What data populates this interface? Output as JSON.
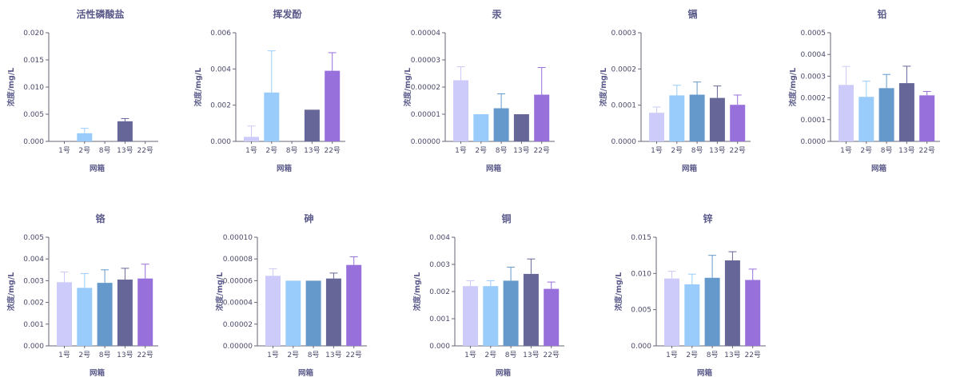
{
  "palette": [
    "#cccbf9",
    "#99ccfb",
    "#6599cb",
    "#666699",
    "#9870dc"
  ],
  "chart_data": [
    {
      "type": "bar",
      "title": "活性磷酸盐",
      "xlabel": "网箱",
      "ylabel": "浓度/mg/L",
      "categories": [
        "1号",
        "2号",
        "8号",
        "13号",
        "22号"
      ],
      "values": [
        0,
        0.0015,
        0,
        0.0037,
        0
      ],
      "errors": [
        0,
        0.0009,
        0,
        0.0005,
        0
      ],
      "ylim": [
        0,
        0.02
      ],
      "yticks": [
        "0.000",
        "0.005",
        "0.010",
        "0.015",
        "0.020"
      ]
    },
    {
      "type": "bar",
      "title": "挥发酚",
      "xlabel": "网箱",
      "ylabel": "浓度/mg/L",
      "categories": [
        "1号",
        "2号",
        "8号",
        "13号",
        "22号"
      ],
      "values": [
        0.00025,
        0.0027,
        0,
        0.00175,
        0.0039
      ],
      "errors": [
        0.0006,
        0.0023,
        0,
        0,
        0.001
      ],
      "ylim": [
        0,
        0.006
      ],
      "yticks": [
        "0.000",
        "0.002",
        "0.004",
        "0.006"
      ]
    },
    {
      "type": "bar",
      "title": "汞",
      "xlabel": "网箱",
      "ylabel": "浓度/mg/L",
      "categories": [
        "1号",
        "2号",
        "8号",
        "13号",
        "22号"
      ],
      "values": [
        2.25e-05,
        1e-05,
        1.22e-05,
        1e-05,
        1.72e-05
      ],
      "errors": [
        5e-06,
        0,
        5.3e-06,
        0,
        1e-05
      ],
      "ylim": [
        0,
        4e-05
      ],
      "yticks": [
        "0.00000",
        "0.00001",
        "0.00002",
        "0.00003",
        "0.00004"
      ]
    },
    {
      "type": "bar",
      "title": "镉",
      "xlabel": "网箱",
      "ylabel": "浓度/mg/L",
      "categories": [
        "1号",
        "2号",
        "8号",
        "13号",
        "22号"
      ],
      "values": [
        7.9e-05,
        0.000127,
        0.000129,
        0.00012,
        0.000101
      ],
      "errors": [
        1.6e-05,
        2.8e-05,
        3.5e-05,
        3.3e-05,
        2.7e-05
      ],
      "ylim": [
        0,
        0.0003
      ],
      "yticks": [
        "0.0000",
        "0.0001",
        "0.0002",
        "0.0003"
      ]
    },
    {
      "type": "bar",
      "title": "铅",
      "xlabel": "网箱",
      "ylabel": "浓度/mg/L",
      "categories": [
        "1号",
        "2号",
        "8号",
        "13号",
        "22号"
      ],
      "values": [
        0.00026,
        0.000205,
        0.000245,
        0.000268,
        0.000212
      ],
      "errors": [
        8.5e-05,
        7.2e-05,
        6.3e-05,
        7.8e-05,
        1.8e-05
      ],
      "ylim": [
        0,
        0.0005
      ],
      "yticks": [
        "0.0000",
        "0.0001",
        "0.0002",
        "0.0003",
        "0.0004",
        "0.0005"
      ]
    },
    {
      "type": "bar",
      "title": "铬",
      "xlabel": "网箱",
      "ylabel": "浓度/mg/L",
      "categories": [
        "1号",
        "2号",
        "8号",
        "13号",
        "22号"
      ],
      "values": [
        0.00293,
        0.00267,
        0.0029,
        0.00305,
        0.0031
      ],
      "errors": [
        0.00047,
        0.00066,
        0.0006,
        0.00052,
        0.00066
      ],
      "ylim": [
        0,
        0.005
      ],
      "yticks": [
        "0.000",
        "0.001",
        "0.002",
        "0.003",
        "0.004",
        "0.005"
      ]
    },
    {
      "type": "bar",
      "title": "砷",
      "xlabel": "网箱",
      "ylabel": "浓度/mg/L",
      "categories": [
        "1号",
        "2号",
        "8号",
        "13号",
        "22号"
      ],
      "values": [
        6.45e-05,
        6e-05,
        6e-05,
        6.2e-05,
        7.45e-05
      ],
      "errors": [
        6.5e-06,
        0,
        0,
        5e-06,
        7.5e-06
      ],
      "ylim": [
        0,
        0.0001
      ],
      "yticks": [
        "0.00000",
        "0.00002",
        "0.00004",
        "0.00006",
        "0.00008",
        "0.00010"
      ]
    },
    {
      "type": "bar",
      "title": "铜",
      "xlabel": "网箱",
      "ylabel": "浓度/mg/L",
      "categories": [
        "1号",
        "2号",
        "8号",
        "13号",
        "22号"
      ],
      "values": [
        0.0022,
        0.0022,
        0.0024,
        0.00265,
        0.0021
      ],
      "errors": [
        0.0002,
        0.0002,
        0.0005,
        0.00055,
        0.00025
      ],
      "ylim": [
        0,
        0.004
      ],
      "yticks": [
        "0.000",
        "0.001",
        "0.002",
        "0.003",
        "0.004"
      ]
    },
    {
      "type": "bar",
      "title": "锌",
      "xlabel": "网箱",
      "ylabel": "浓度/mg/L",
      "categories": [
        "1号",
        "2号",
        "8号",
        "13号",
        "22号"
      ],
      "values": [
        0.0093,
        0.0085,
        0.0094,
        0.0118,
        0.0091
      ],
      "errors": [
        0.001,
        0.0014,
        0.0031,
        0.0012,
        0.0015
      ],
      "ylim": [
        0,
        0.015
      ],
      "yticks": [
        "0.000",
        "0.005",
        "0.010",
        "0.015"
      ]
    }
  ]
}
